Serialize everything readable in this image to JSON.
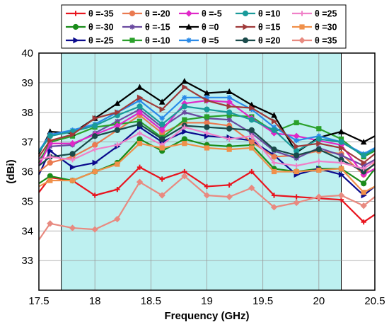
{
  "chart_data": {
    "type": "line",
    "title": "",
    "xlabel": "Frequency (GHz)",
    "ylabel": "(dBi)",
    "xlim": [
      17.5,
      20.5
    ],
    "ylim": [
      32,
      40
    ],
    "xticks": [
      "17.5",
      "18",
      "18.5",
      "19",
      "19.5",
      "20",
      "20.5"
    ],
    "yticks": [
      "33",
      "34",
      "35",
      "36",
      "37",
      "38",
      "39",
      "40"
    ],
    "grid": true,
    "legend_position": "top",
    "highlight_band": {
      "x_start": 17.7,
      "x_end": 20.2,
      "color": "#bdf0f0"
    },
    "x": [
      17.5,
      17.6,
      17.8,
      18.0,
      18.2,
      18.4,
      18.6,
      18.8,
      19.0,
      19.2,
      19.4,
      19.6,
      19.8,
      20.0,
      20.2,
      20.4,
      20.5
    ],
    "series": [
      {
        "name": "θ =-35",
        "color": "#e8141e",
        "marker": "plus",
        "values": [
          35.3,
          35.8,
          35.7,
          35.2,
          35.4,
          36.15,
          35.75,
          36.0,
          35.5,
          35.55,
          36.0,
          35.2,
          35.15,
          35.1,
          35.05,
          34.3,
          34.55
        ]
      },
      {
        "name": "θ =-30",
        "color": "#1a8c1a",
        "marker": "circle",
        "values": [
          35.6,
          35.85,
          35.7,
          36.0,
          36.3,
          37.1,
          36.7,
          37.1,
          36.9,
          36.85,
          36.9,
          36.1,
          36.0,
          36.1,
          36.1,
          35.6,
          36.1
        ]
      },
      {
        "name": "θ =-25",
        "color": "#0a0a8c",
        "marker": "triangle-right",
        "values": [
          35.9,
          36.7,
          36.15,
          36.3,
          36.85,
          37.5,
          37.0,
          37.35,
          37.2,
          37.15,
          37.05,
          36.55,
          35.9,
          36.1,
          35.9,
          35.2,
          35.5
        ]
      },
      {
        "name": "θ =-20",
        "color": "#ea7a50",
        "marker": "circle",
        "values": [
          36.0,
          36.3,
          36.5,
          36.9,
          37.4,
          37.9,
          37.3,
          37.65,
          37.65,
          37.55,
          37.0,
          36.5,
          36.55,
          36.7,
          36.6,
          35.9,
          36.3
        ]
      },
      {
        "name": "θ =-15",
        "color": "#6a4aa0",
        "marker": "star",
        "values": [
          36.4,
          36.85,
          36.9,
          37.3,
          37.7,
          38.1,
          37.5,
          38.0,
          37.8,
          37.75,
          37.3,
          36.7,
          36.45,
          36.8,
          36.55,
          36.2,
          36.4
        ]
      },
      {
        "name": "θ =-10",
        "color": "#2aa02a",
        "marker": "square",
        "values": [
          36.3,
          37.0,
          37.2,
          37.5,
          37.6,
          37.7,
          37.15,
          37.75,
          37.85,
          37.9,
          37.85,
          37.35,
          37.65,
          37.45,
          37.1,
          36.5,
          36.7
        ]
      },
      {
        "name": "θ =-5",
        "color": "#e028c8",
        "marker": "diamond",
        "values": [
          36.2,
          36.95,
          36.95,
          37.25,
          37.55,
          38.0,
          37.4,
          38.3,
          38.4,
          38.35,
          37.8,
          37.3,
          37.2,
          37.05,
          36.9,
          35.9,
          36.1
        ]
      },
      {
        "name": "θ =0",
        "color": "#000000",
        "marker": "triangle-up",
        "values": [
          36.6,
          37.35,
          37.3,
          37.8,
          38.3,
          38.85,
          38.35,
          39.05,
          38.65,
          38.7,
          38.25,
          37.9,
          36.65,
          37.15,
          37.35,
          37.0,
          37.2
        ]
      },
      {
        "name": "θ =5",
        "color": "#2a8ae8",
        "marker": "star",
        "values": [
          36.7,
          37.25,
          37.4,
          37.6,
          38.0,
          38.4,
          37.8,
          38.5,
          38.5,
          38.5,
          38.1,
          37.5,
          37.05,
          37.2,
          37.0,
          36.6,
          36.8
        ]
      },
      {
        "name": "θ =10",
        "color": "#1a9a9a",
        "marker": "circle",
        "values": [
          36.65,
          37.2,
          37.35,
          37.55,
          37.9,
          38.2,
          37.6,
          38.2,
          38.1,
          38.0,
          37.75,
          37.4,
          36.7,
          37.1,
          37.0,
          36.55,
          36.75
        ]
      },
      {
        "name": "θ =15",
        "color": "#a03a3a",
        "marker": "triangle-right",
        "values": [
          36.5,
          37.05,
          37.25,
          37.8,
          38.0,
          38.5,
          38.1,
          38.85,
          38.4,
          38.2,
          38.15,
          37.7,
          36.85,
          36.95,
          36.8,
          36.3,
          36.6
        ]
      },
      {
        "name": "θ =20",
        "color": "#1a4a4a",
        "marker": "circle",
        "values": [
          36.2,
          36.5,
          36.6,
          37.2,
          37.4,
          37.6,
          37.1,
          37.55,
          37.5,
          37.45,
          37.4,
          36.75,
          36.55,
          36.75,
          36.4,
          36.0,
          36.25
        ]
      },
      {
        "name": "θ =25",
        "color": "#f080c8",
        "marker": "plus",
        "values": [
          36.4,
          36.5,
          36.4,
          36.75,
          36.9,
          37.3,
          36.9,
          37.5,
          37.3,
          37.1,
          37.2,
          36.3,
          36.2,
          36.35,
          36.3,
          36.1,
          36.35
        ]
      },
      {
        "name": "θ =30",
        "color": "#f0904a",
        "marker": "square",
        "values": [
          35.5,
          35.7,
          35.7,
          36.0,
          36.25,
          36.95,
          36.8,
          36.95,
          36.8,
          36.75,
          36.8,
          36.0,
          36.0,
          36.05,
          36.1,
          35.3,
          35.5
        ]
      },
      {
        "name": "θ =35",
        "color": "#e88a80",
        "marker": "diamond",
        "values": [
          33.7,
          34.25,
          34.1,
          34.05,
          34.4,
          35.65,
          35.2,
          35.85,
          35.2,
          35.15,
          35.45,
          34.8,
          34.95,
          35.15,
          35.2,
          34.85,
          35.15
        ]
      }
    ]
  }
}
